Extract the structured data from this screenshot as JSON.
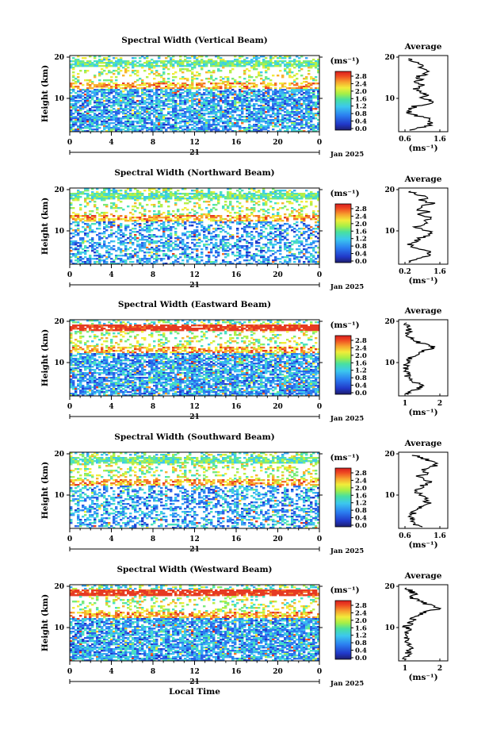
{
  "chart_data": [
    {
      "type": "heatmap",
      "title": "Spectral Width (Vertical Beam)",
      "ylabel": "Height (km)",
      "y_ticks": [
        "20",
        "10"
      ],
      "x_ticks": [
        "0",
        "4",
        "8",
        "12",
        "16",
        "20",
        "0"
      ],
      "date_day": "21",
      "date_month": "Jan 2025",
      "colorbar": {
        "unit": "(ms⁻¹)",
        "ticks": [
          "2.8",
          "2.4",
          "2.0",
          "1.6",
          "1.2",
          "0.8",
          "0.4",
          "0.0"
        ]
      },
      "average": {
        "title": "Average",
        "unit": "(ms⁻¹)",
        "x_ticks": [
          "0.6",
          "1.6"
        ],
        "y_ticks": [
          "20",
          "10"
        ]
      }
    },
    {
      "type": "heatmap",
      "title": "Spectral Width (Northward Beam)",
      "ylabel": "Height (km)",
      "y_ticks": [
        "20",
        "10"
      ],
      "x_ticks": [
        "0",
        "4",
        "8",
        "12",
        "16",
        "20",
        "0"
      ],
      "date_day": "21",
      "date_month": "Jan 2025",
      "colorbar": {
        "unit": "(ms⁻¹)",
        "ticks": [
          "2.8",
          "2.4",
          "2.0",
          "1.6",
          "1.2",
          "0.8",
          "0.4",
          "0.0"
        ]
      },
      "average": {
        "title": "Average",
        "unit": "(ms⁻¹)",
        "x_ticks": [
          "0.2",
          "1.6"
        ],
        "y_ticks": [
          "20",
          "10"
        ]
      }
    },
    {
      "type": "heatmap",
      "title": "Spectral Width (Eastward Beam)",
      "ylabel": "Height (km)",
      "y_ticks": [
        "20",
        "10"
      ],
      "x_ticks": [
        "0",
        "4",
        "8",
        "12",
        "16",
        "20",
        "0"
      ],
      "date_day": "21",
      "date_month": "Jan 2025",
      "colorbar": {
        "unit": "(ms⁻¹)",
        "ticks": [
          "2.8",
          "2.4",
          "2.0",
          "1.6",
          "1.2",
          "0.8",
          "0.4",
          "0.0"
        ]
      },
      "average": {
        "title": "Average",
        "unit": "(ms⁻¹)",
        "x_ticks": [
          "1",
          "2"
        ],
        "y_ticks": [
          "20",
          "10"
        ]
      }
    },
    {
      "type": "heatmap",
      "title": "Spectral Width (Southward Beam)",
      "ylabel": "Height (km)",
      "y_ticks": [
        "20",
        "10"
      ],
      "x_ticks": [
        "0",
        "4",
        "8",
        "12",
        "16",
        "20",
        "0"
      ],
      "date_day": "21",
      "date_month": "Jan 2025",
      "colorbar": {
        "unit": "(ms⁻¹)",
        "ticks": [
          "2.8",
          "2.4",
          "2.0",
          "1.6",
          "1.2",
          "0.8",
          "0.4",
          "0.0"
        ]
      },
      "average": {
        "title": "Average",
        "unit": "(ms⁻¹)",
        "x_ticks": [
          "0.6",
          "1.6"
        ],
        "y_ticks": [
          "20",
          "10"
        ]
      }
    },
    {
      "type": "heatmap",
      "title": "Spectral Width (Westward Beam)",
      "ylabel": "Height (km)",
      "y_ticks": [
        "20",
        "10"
      ],
      "x_ticks": [
        "0",
        "4",
        "8",
        "12",
        "16",
        "20",
        "0"
      ],
      "date_day": "21",
      "date_month": "Jan 2025",
      "xlabel": "Local Time",
      "colorbar": {
        "unit": "(ms⁻¹)",
        "ticks": [
          "2.8",
          "2.4",
          "2.0",
          "1.6",
          "1.2",
          "0.8",
          "0.4",
          "0.0"
        ]
      },
      "average": {
        "title": "Average",
        "unit": "(ms⁻¹)",
        "x_ticks": [
          "1",
          "2"
        ],
        "y_ticks": [
          "20",
          "10"
        ]
      }
    }
  ]
}
